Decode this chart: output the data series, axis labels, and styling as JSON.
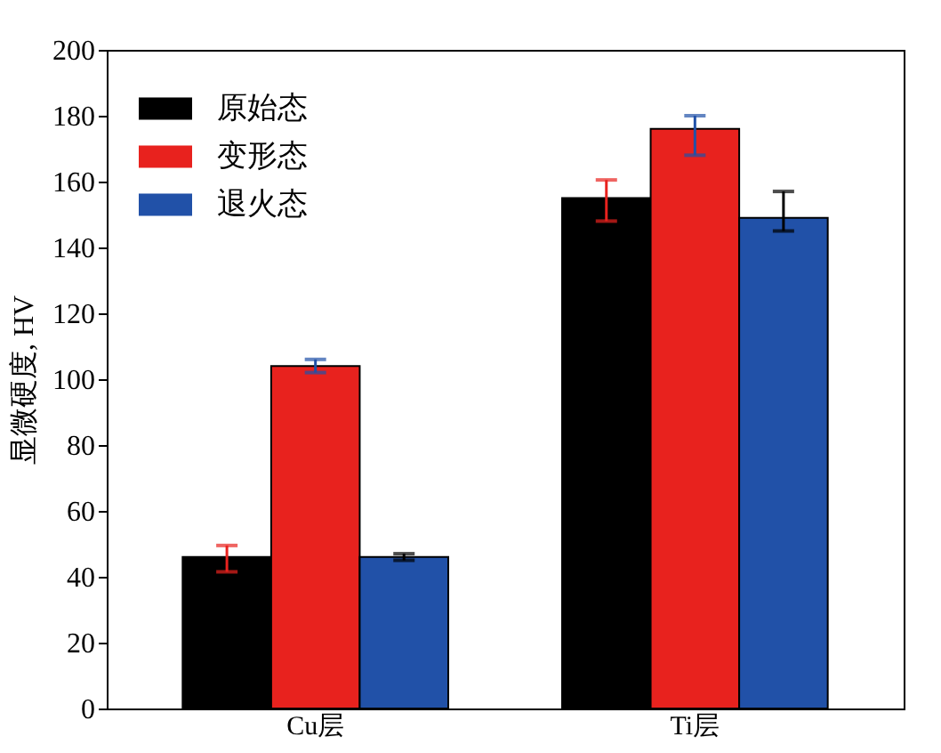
{
  "chart_data": {
    "type": "bar",
    "ylabel": "显微硬度, HV",
    "categories": [
      "Cu层",
      "Ti层"
    ],
    "series": [
      {
        "name": "原始态",
        "color": "#000000",
        "values": [
          46,
          155
        ],
        "errors": [
          [
            41.5,
            49.5
          ],
          [
            148,
            160.5
          ]
        ]
      },
      {
        "name": "变形态",
        "color": "#e8221e",
        "values": [
          104,
          176
        ],
        "errors": [
          [
            102,
            106
          ],
          [
            168,
            180
          ]
        ]
      },
      {
        "name": "退火态",
        "color": "#2151a8",
        "values": [
          46,
          149
        ],
        "errors": [
          [
            45,
            47
          ],
          [
            145,
            157
          ]
        ]
      }
    ],
    "ylim": [
      0,
      200
    ],
    "yticks": [
      0,
      20,
      40,
      60,
      80,
      100,
      120,
      140,
      160,
      180,
      200
    ],
    "grid": false,
    "legend": "top left"
  }
}
